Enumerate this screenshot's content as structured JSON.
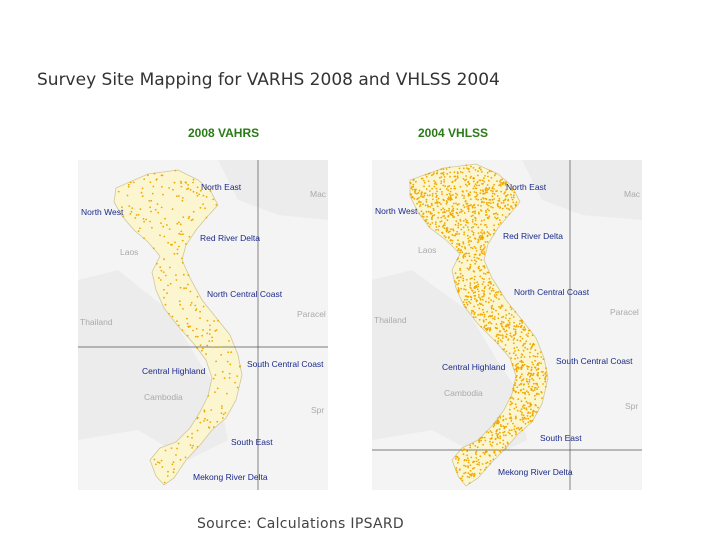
{
  "title": "Survey Site Mapping for VARHS 2008 and VHLSS 2004",
  "source": "Source: Calculations IPSARD",
  "colors": {
    "heading": "#2a7a16",
    "region_label": "#1b2a8a",
    "country_fill": "#fbf6cf",
    "dots": "#f0a800"
  },
  "maps": [
    {
      "heading": "2008 VAHRS",
      "regions": [
        "North East",
        "North West",
        "Red River Delta",
        "North Central Coast",
        "South Central Coast",
        "Central Highland",
        "South East",
        "Mekong River Delta"
      ],
      "countries": [
        "Mac",
        "Laos",
        "Thailand",
        "Paracel",
        "Cambodia",
        "Spr"
      ]
    },
    {
      "heading": "2004 VHLSS",
      "regions": [
        "North East",
        "North West",
        "Red River Delta",
        "North Central Coast",
        "South Central Coast",
        "Central Highland",
        "South East",
        "Mekong River Delta"
      ],
      "countries": [
        "Mac",
        "Laos",
        "Thailand",
        "Paracel",
        "Cambodia",
        "Spr"
      ]
    }
  ]
}
